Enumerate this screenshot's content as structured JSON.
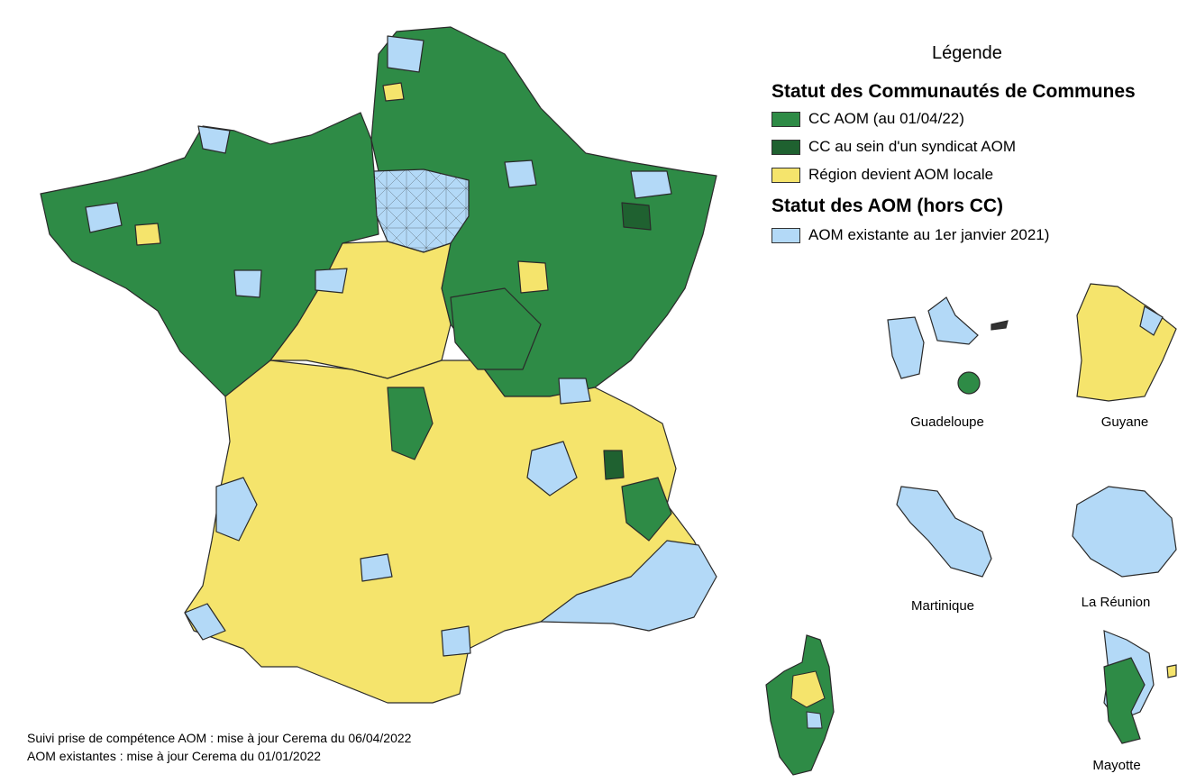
{
  "colors": {
    "cc_aom": "#2e8b46",
    "cc_syndicat": "#1f6130",
    "region_aom": "#f5e46c",
    "aom_existante": "#b3d9f7",
    "border": "#2a2a2a"
  },
  "legend": {
    "title": "Légende",
    "section_cc": "Statut des Communautés de Communes",
    "items_cc": [
      {
        "label": "CC AOM (au 01/04/22)",
        "color_key": "cc_aom"
      },
      {
        "label": "CC au sein d'un syndicat AOM",
        "color_key": "cc_syndicat"
      },
      {
        "label": "Région devient AOM locale",
        "color_key": "region_aom"
      }
    ],
    "section_aom": "Statut des AOM (hors CC)",
    "items_aom": [
      {
        "label": "AOM existante au 1er janvier 2021)",
        "color_key": "aom_existante"
      }
    ]
  },
  "territories": {
    "guadeloupe": "Guadeloupe",
    "guyane": "Guyane",
    "martinique": "Martinique",
    "reunion": "La Réunion",
    "mayotte": "Mayotte"
  },
  "footer": {
    "line1": "Suivi prise de compétence AOM : mise à jour Cerema du 06/04/2022",
    "line2": "AOM existantes : mise à jour Cerema du 01/01/2022"
  }
}
